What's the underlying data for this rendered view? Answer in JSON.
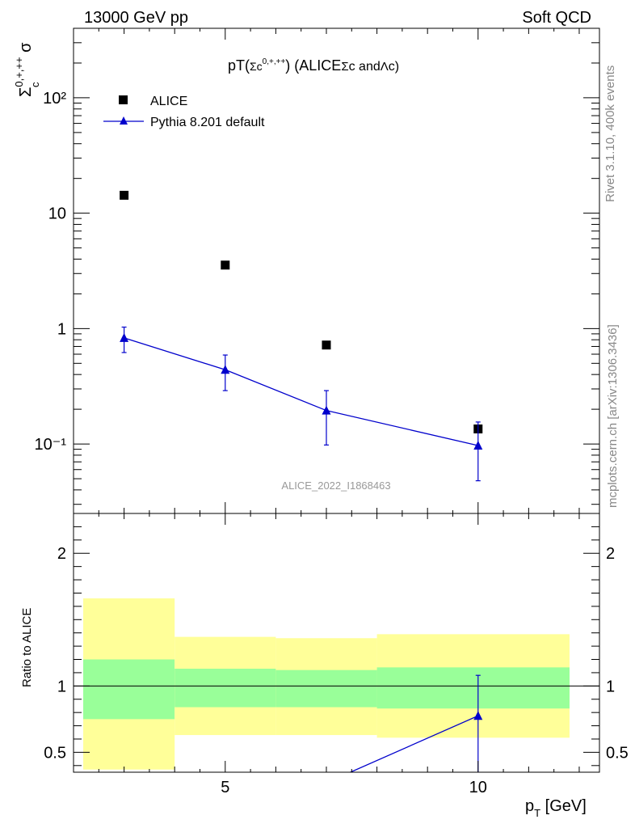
{
  "header": {
    "left": "13000 GeV pp",
    "right": "Soft QCD"
  },
  "side_labels": {
    "rivet": "Rivet 3.1.10,  400k events",
    "mcplots": "mcplots.cern.ch [arXiv:1306.3436]"
  },
  "chart_data": [
    {
      "type": "scatter",
      "panel": "main",
      "title": "pT(Σc⁰,⁺,⁺⁺) (ALICE Σc and Λc)",
      "ylabel": "Σc⁰,⁺,⁺⁺ σ",
      "yscale": "log",
      "xlim": [
        2,
        12.4
      ],
      "ylim": [
        0.025,
        400
      ],
      "ytick_labels": [
        "10⁻¹",
        "1",
        "10",
        "10²"
      ],
      "watermark": "ALICE_2022_I1868463",
      "legend": {
        "position": "top-left"
      },
      "series": [
        {
          "name": "ALICE",
          "marker": "square",
          "color": "#000000",
          "x": [
            3,
            5,
            7,
            10
          ],
          "y": [
            14.3,
            3.55,
            0.72,
            0.135
          ]
        },
        {
          "name": "Pythia 8.201 default",
          "marker": "triangle",
          "color": "#0000cc",
          "x": [
            3,
            5,
            7,
            10
          ],
          "y": [
            0.83,
            0.44,
            0.195,
            0.097
          ],
          "yerr_low": [
            0.62,
            0.29,
            0.098,
            0.048
          ],
          "yerr_high": [
            1.03,
            0.59,
            0.29,
            0.155
          ]
        }
      ]
    },
    {
      "type": "line",
      "panel": "ratio",
      "ylabel": "Ratio to ALICE",
      "xlabel": "p_T [GeV]",
      "xlim": [
        2,
        12.4
      ],
      "ylim": [
        0.35,
        2.3
      ],
      "xticks": [
        5,
        10
      ],
      "yticks": [
        0.5,
        1,
        2
      ],
      "bands": [
        {
          "x": [
            2,
            4
          ],
          "yellow": [
            0.37,
            1.66
          ],
          "green": [
            0.75,
            1.2
          ]
        },
        {
          "x": [
            4,
            6
          ],
          "yellow": [
            0.63,
            1.37
          ],
          "green": [
            0.84,
            1.13
          ]
        },
        {
          "x": [
            6,
            8
          ],
          "yellow": [
            0.63,
            1.36
          ],
          "green": [
            0.84,
            1.12
          ]
        },
        {
          "x": [
            8,
            12
          ],
          "yellow": [
            0.61,
            1.39
          ],
          "green": [
            0.83,
            1.14
          ]
        }
      ],
      "series": [
        {
          "name": "Pythia 8.201 default",
          "color": "#0000cc",
          "x": [
            7,
            10
          ],
          "y": [
            0.27,
            0.775
          ],
          "yerr_low": [
            null,
            0.35
          ],
          "yerr_high": [
            null,
            1.08
          ]
        }
      ]
    }
  ]
}
